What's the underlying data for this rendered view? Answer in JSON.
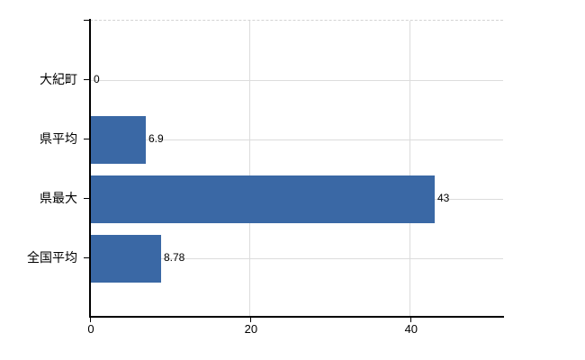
{
  "chart_data": {
    "type": "bar",
    "orientation": "horizontal",
    "title": "",
    "categories": [
      "大紀町",
      "県平均",
      "県最大",
      "全国平均"
    ],
    "values": [
      0,
      6.9,
      43,
      8.78
    ],
    "value_labels": [
      "0",
      "6.9",
      "43",
      "8.78"
    ],
    "xlabel": "",
    "ylabel": "",
    "xlim": [
      0,
      51.6
    ],
    "xticks": [
      0,
      20,
      40
    ],
    "xtick_labels": [
      "0",
      "20",
      "40"
    ],
    "grid": true,
    "legend": false,
    "colors": {
      "bar": "#3a68a5",
      "grid": "#dcdcdc",
      "axis": "#000000",
      "text": "#000000",
      "background": "#ffffff",
      "plot_top_border": "#d4d4d4"
    }
  }
}
